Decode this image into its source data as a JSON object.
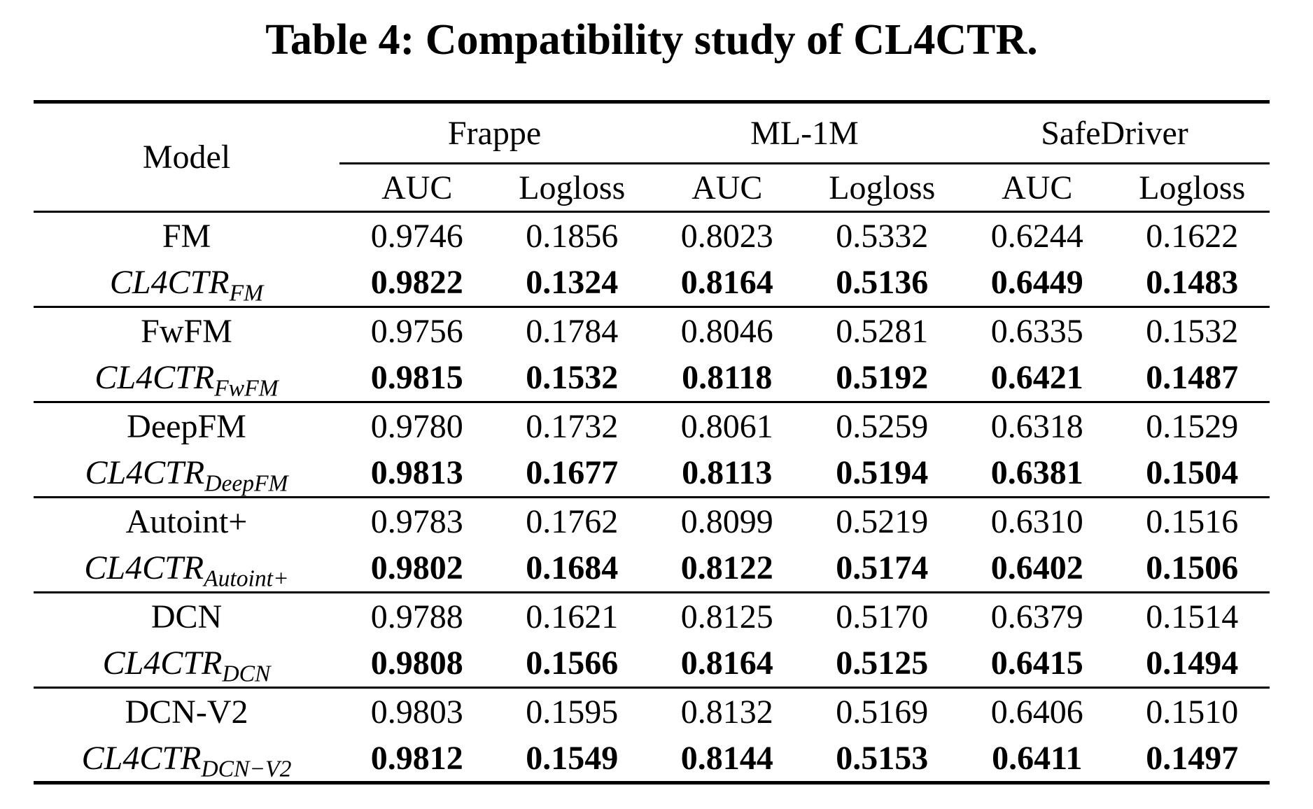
{
  "title": "Table 4: Compatibility study of CL4CTR.",
  "table": {
    "model_header": "Model",
    "groups": [
      {
        "label": "Frappe"
      },
      {
        "label": "ML-1M"
      },
      {
        "label": "SafeDriver"
      }
    ],
    "metric_headers": [
      "AUC",
      "Logloss",
      "AUC",
      "Logloss",
      "AUC",
      "Logloss"
    ],
    "rows": [
      {
        "model_base": "FM",
        "model_sub": "",
        "italic": false,
        "bold": false,
        "values": [
          "0.9746",
          "0.1856",
          "0.8023",
          "0.5332",
          "0.6244",
          "0.1622"
        ]
      },
      {
        "model_base": "CL4CTR",
        "model_sub": "FM",
        "italic": true,
        "bold": true,
        "values": [
          "0.9822",
          "0.1324",
          "0.8164",
          "0.5136",
          "0.6449",
          "0.1483"
        ]
      },
      {
        "model_base": "FwFM",
        "model_sub": "",
        "italic": false,
        "bold": false,
        "values": [
          "0.9756",
          "0.1784",
          "0.8046",
          "0.5281",
          "0.6335",
          "0.1532"
        ]
      },
      {
        "model_base": "CL4CTR",
        "model_sub": "FwFM",
        "italic": true,
        "bold": true,
        "values": [
          "0.9815",
          "0.1532",
          "0.8118",
          "0.5192",
          "0.6421",
          "0.1487"
        ]
      },
      {
        "model_base": "DeepFM",
        "model_sub": "",
        "italic": false,
        "bold": false,
        "values": [
          "0.9780",
          "0.1732",
          "0.8061",
          "0.5259",
          "0.6318",
          "0.1529"
        ]
      },
      {
        "model_base": "CL4CTR",
        "model_sub": "DeepFM",
        "italic": true,
        "bold": true,
        "values": [
          "0.9813",
          "0.1677",
          "0.8113",
          "0.5194",
          "0.6381",
          "0.1504"
        ]
      },
      {
        "model_base": "Autoint+",
        "model_sub": "",
        "italic": false,
        "bold": false,
        "values": [
          "0.9783",
          "0.1762",
          "0.8099",
          "0.5219",
          "0.6310",
          "0.1516"
        ]
      },
      {
        "model_base": "CL4CTR",
        "model_sub": "Autoint+",
        "italic": true,
        "bold": true,
        "values": [
          "0.9802",
          "0.1684",
          "0.8122",
          "0.5174",
          "0.6402",
          "0.1506"
        ]
      },
      {
        "model_base": "DCN",
        "model_sub": "",
        "italic": false,
        "bold": false,
        "values": [
          "0.9788",
          "0.1621",
          "0.8125",
          "0.5170",
          "0.6379",
          "0.1514"
        ]
      },
      {
        "model_base": "CL4CTR",
        "model_sub": "DCN",
        "italic": true,
        "bold": true,
        "values": [
          "0.9808",
          "0.1566",
          "0.8164",
          "0.5125",
          "0.6415",
          "0.1494"
        ]
      },
      {
        "model_base": "DCN-V2",
        "model_sub": "",
        "italic": false,
        "bold": false,
        "values": [
          "0.9803",
          "0.1595",
          "0.8132",
          "0.5169",
          "0.6406",
          "0.1510"
        ]
      },
      {
        "model_base": "CL4CTR",
        "model_sub": "DCN−V2",
        "italic": true,
        "bold": true,
        "values": [
          "0.9812",
          "0.1549",
          "0.8144",
          "0.5153",
          "0.6411",
          "0.1497"
        ]
      }
    ]
  }
}
